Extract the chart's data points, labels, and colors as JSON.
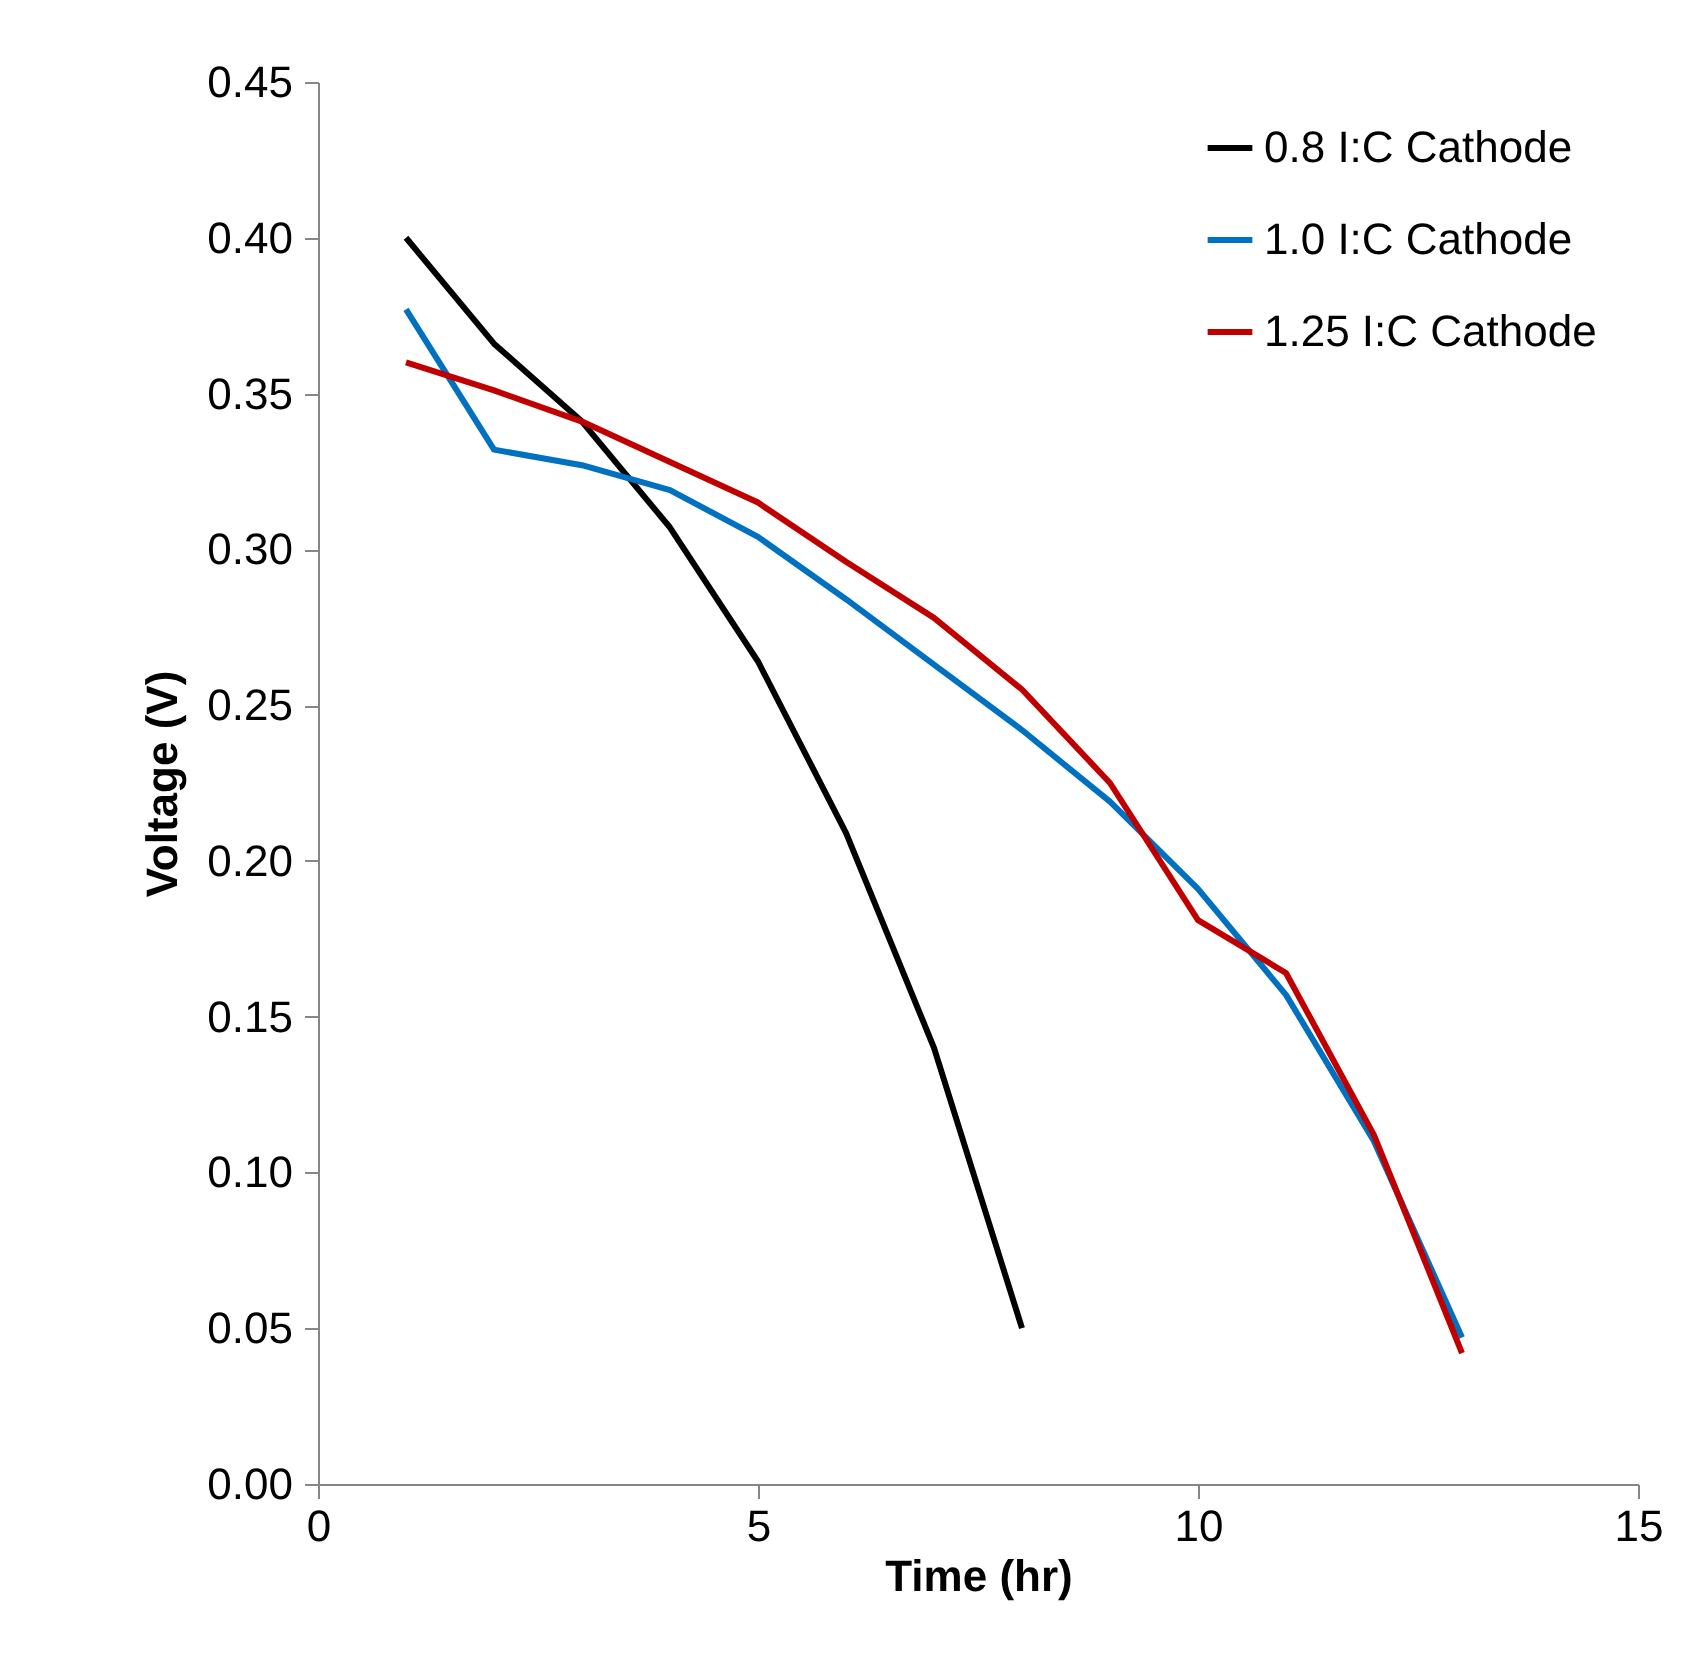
{
  "chart_data": {
    "type": "line",
    "xlabel": "Time (hr)",
    "ylabel": "Voltage (V)",
    "xlim": [
      0,
      15
    ],
    "xticks": [
      0,
      5,
      10,
      15
    ],
    "ylim": [
      0,
      0.45
    ],
    "yticks": [
      {
        "value": 0,
        "label": "0.00"
      },
      0.05,
      {
        "value": 0.1,
        "label": "0.10"
      },
      0.15,
      {
        "value": 0.2,
        "label": "0.20"
      },
      0.25,
      {
        "value": 0.3,
        "label": "0.30"
      },
      0.35,
      {
        "value": 0.4,
        "label": "0.40"
      },
      0.45
    ],
    "grid": false,
    "legend": "top right",
    "marker": "none",
    "line_style": "solid",
    "series": [
      {
        "name": "0.8 I:C Cathode",
        "color": "#000000",
        "x": [
          1,
          2,
          3,
          4,
          5,
          6,
          7,
          8
        ],
        "values": [
          0.4,
          0.366,
          0.341,
          0.307,
          0.264,
          0.209,
          0.14,
          0.05
        ]
      },
      {
        "name": "1.0 I:C Cathode",
        "color": "#0070c0",
        "x": [
          1,
          2,
          3,
          4,
          5,
          6,
          7,
          8,
          9,
          10,
          11,
          12,
          13
        ],
        "values": [
          0.377,
          0.332,
          0.327,
          0.319,
          0.304,
          0.284,
          0.263,
          0.242,
          0.219,
          0.191,
          0.157,
          0.11,
          0.047
        ]
      },
      {
        "name": "1.25 I:C Cathode",
        "color": "#c00000",
        "x": [
          1,
          2,
          3,
          4,
          5,
          6,
          7,
          8,
          9,
          10,
          11,
          12,
          13
        ],
        "values": [
          0.36,
          0.351,
          0.341,
          0.328,
          0.315,
          0.296,
          0.278,
          0.255,
          0.225,
          0.181,
          0.164,
          0.112,
          0.042
        ]
      }
    ]
  }
}
